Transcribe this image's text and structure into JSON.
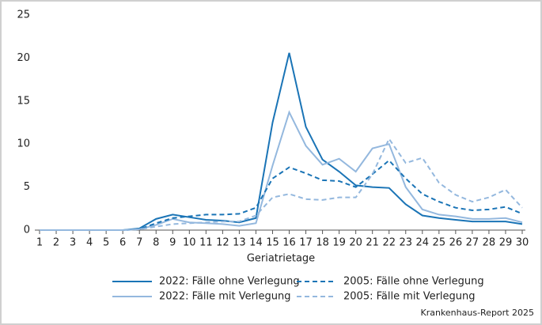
{
  "chart_data": {
    "type": "line",
    "x": [
      1,
      2,
      3,
      4,
      5,
      6,
      7,
      8,
      9,
      10,
      11,
      12,
      13,
      14,
      15,
      16,
      17,
      18,
      19,
      20,
      21,
      22,
      23,
      24,
      25,
      26,
      27,
      28,
      29,
      30
    ],
    "xlim": [
      1,
      30
    ],
    "xticks": [
      1,
      2,
      3,
      4,
      5,
      6,
      7,
      8,
      9,
      10,
      11,
      12,
      13,
      14,
      15,
      16,
      17,
      18,
      19,
      20,
      21,
      22,
      23,
      24,
      25,
      26,
      27,
      28,
      29,
      30
    ],
    "xlabel": "Geriatrietage",
    "ylim": [
      0,
      25
    ],
    "yticks": [
      0,
      5,
      10,
      15,
      20,
      25
    ],
    "grid": false,
    "legend": "bottom",
    "source": "Krankenhaus-Report 2025",
    "series": [
      {
        "name": "2022: Fälle ohne Verlegung",
        "color": "#1a74b6",
        "style": "solid",
        "values": [
          0,
          0,
          0,
          0,
          0,
          0,
          0.2,
          1.3,
          1.8,
          1.5,
          1.2,
          1.1,
          0.9,
          1.4,
          12.5,
          20.6,
          12,
          8.2,
          6.8,
          5.2,
          5,
          4.9,
          3,
          1.7,
          1.4,
          1.2,
          1,
          1,
          1,
          0.7
        ]
      },
      {
        "name": "2022: Fälle mit Verlegung",
        "color": "#94b8de",
        "style": "solid",
        "values": [
          0,
          0,
          0,
          0,
          0,
          0,
          0.1,
          0.6,
          1.3,
          0.9,
          0.8,
          0.7,
          0.5,
          0.8,
          7.5,
          13.7,
          9.8,
          7.6,
          8.3,
          6.8,
          9.5,
          10,
          5,
          2.4,
          1.8,
          1.6,
          1.3,
          1.3,
          1.4,
          0.9
        ]
      },
      {
        "name": "2005: Fälle ohne Verlegung",
        "color": "#1a74b6",
        "style": "dashed",
        "values": [
          0,
          0,
          0,
          0,
          0,
          0,
          0.1,
          0.8,
          1.4,
          1.6,
          1.8,
          1.8,
          1.9,
          2.6,
          6,
          7.3,
          6.6,
          5.8,
          5.7,
          5,
          6.5,
          8.1,
          6,
          4.2,
          3.3,
          2.6,
          2.3,
          2.4,
          2.7,
          1.9
        ]
      },
      {
        "name": "2005: Fälle mit Verlegung",
        "color": "#94b8de",
        "style": "dashed",
        "values": [
          0,
          0,
          0,
          0,
          0,
          0,
          0.1,
          0.4,
          0.7,
          0.8,
          0.9,
          1,
          1,
          1.7,
          3.8,
          4.2,
          3.6,
          3.5,
          3.8,
          3.8,
          6.5,
          10.6,
          7.8,
          8.4,
          5.5,
          4.1,
          3.3,
          3.8,
          4.7,
          2.6
        ]
      }
    ]
  }
}
